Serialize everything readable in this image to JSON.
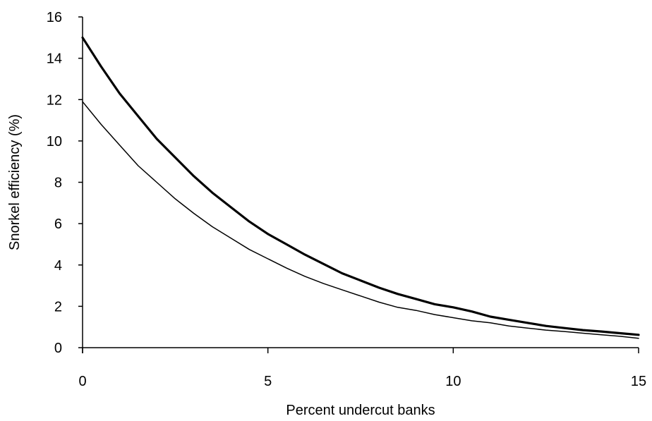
{
  "chart_data": {
    "type": "line",
    "title": "",
    "xlabel": "Percent undercut banks",
    "ylabel": "Snorkel efficiency (%)",
    "xlim": [
      0,
      15
    ],
    "ylim": [
      0,
      16
    ],
    "xticks": [
      0,
      5,
      10,
      15
    ],
    "yticks": [
      0,
      2,
      4,
      6,
      8,
      10,
      12,
      14,
      16
    ],
    "grid": false,
    "legend": "none",
    "series": [
      {
        "style": "thick",
        "color": "#000000",
        "x": [
          0,
          0.5,
          1,
          1.5,
          2,
          2.5,
          3,
          3.5,
          4,
          4.5,
          5,
          5.5,
          6,
          6.5,
          7,
          7.5,
          8,
          8.5,
          9,
          9.5,
          10,
          10.5,
          11,
          11.5,
          12,
          12.5,
          13,
          13.5,
          14,
          14.5,
          15
        ],
        "values": [
          15.0,
          13.6,
          12.3,
          11.2,
          10.1,
          9.2,
          8.3,
          7.5,
          6.8,
          6.1,
          5.5,
          5.0,
          4.5,
          4.05,
          3.6,
          3.25,
          2.9,
          2.6,
          2.35,
          2.1,
          1.95,
          1.75,
          1.5,
          1.35,
          1.2,
          1.05,
          0.95,
          0.85,
          0.78,
          0.7,
          0.62
        ]
      },
      {
        "style": "thin",
        "color": "#000000",
        "x": [
          0,
          0.5,
          1,
          1.5,
          2,
          2.5,
          3,
          3.5,
          4,
          4.5,
          5,
          5.5,
          6,
          6.5,
          7,
          7.5,
          8,
          8.5,
          9,
          9.5,
          10,
          10.5,
          11,
          11.5,
          12,
          12.5,
          13,
          13.5,
          14,
          14.5,
          15
        ],
        "values": [
          11.9,
          10.8,
          9.8,
          8.8,
          8.0,
          7.2,
          6.5,
          5.85,
          5.3,
          4.75,
          4.3,
          3.85,
          3.45,
          3.1,
          2.8,
          2.5,
          2.2,
          1.95,
          1.8,
          1.6,
          1.45,
          1.3,
          1.2,
          1.05,
          0.95,
          0.85,
          0.78,
          0.7,
          0.62,
          0.55,
          0.45
        ]
      }
    ]
  }
}
